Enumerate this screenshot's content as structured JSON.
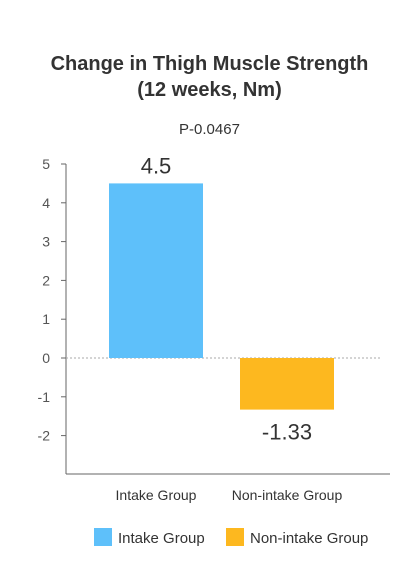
{
  "chart_data": {
    "type": "bar",
    "title_lines": [
      "Change in Thigh Muscle Strength",
      "(12 weeks, Nm)"
    ],
    "annotation": "P-0.0467",
    "categories": [
      "Intake Group",
      "Non-intake Group"
    ],
    "values": [
      4.5,
      -1.33
    ],
    "value_labels": [
      "4.5",
      "-1.33"
    ],
    "colors": [
      "#5EC0FA",
      "#FDB81F"
    ],
    "ylim": [
      -3,
      5
    ],
    "yticks": [
      5,
      4,
      3,
      2,
      1,
      0,
      -1,
      -2
    ],
    "ytick_labels": [
      "5",
      "4",
      "3",
      "2",
      "1",
      "0",
      "-1",
      "-2"
    ],
    "legend": [
      "Intake Group",
      "Non-intake Group"
    ],
    "legend_position": "bottom",
    "zero_line": "dotted",
    "grid": false
  }
}
